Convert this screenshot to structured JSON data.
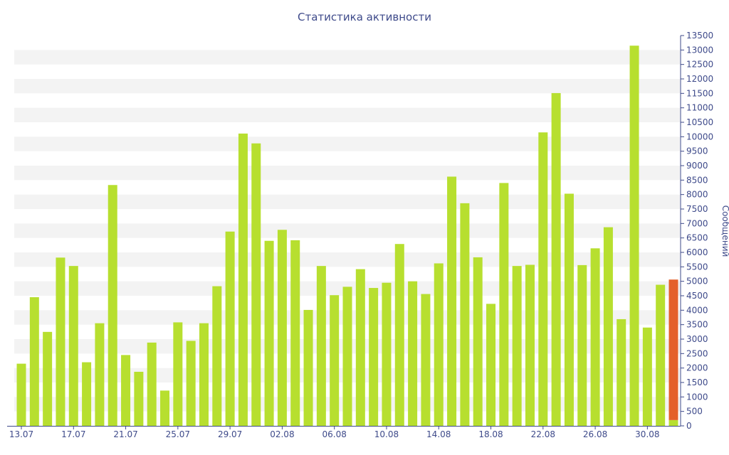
{
  "chart_data": {
    "type": "bar",
    "title": "Статистика активности",
    "ylabel": "Сообщений",
    "ylim": [
      0,
      13500
    ],
    "y_ticks": [
      0,
      500,
      1000,
      1500,
      2000,
      2500,
      3000,
      3500,
      4000,
      4500,
      5000,
      5500,
      6000,
      6500,
      7000,
      7500,
      8000,
      8500,
      9000,
      9500,
      10000,
      10500,
      11000,
      11500,
      12000,
      12500,
      13000,
      13500
    ],
    "x_tick_labels": [
      "13.07",
      "17.07",
      "21.07",
      "25.07",
      "29.07",
      "02.08",
      "06.08",
      "10.08",
      "14.08",
      "18.08",
      "22.08",
      "26.08",
      "30.08"
    ],
    "categories": [
      "13.07",
      "14.07",
      "15.07",
      "16.07",
      "17.07",
      "18.07",
      "19.07",
      "20.07",
      "21.07",
      "22.07",
      "23.07",
      "24.07",
      "25.07",
      "26.07",
      "27.07",
      "28.07",
      "29.07",
      "30.07",
      "31.07",
      "01.08",
      "02.08",
      "03.08",
      "04.08",
      "05.08",
      "06.08",
      "07.08",
      "08.08",
      "09.08",
      "10.08",
      "11.08",
      "12.08",
      "13.08",
      "14.08",
      "15.08",
      "16.08",
      "17.08",
      "18.08",
      "19.08",
      "20.08",
      "21.08",
      "22.08",
      "23.08",
      "24.08",
      "25.08",
      "26.08",
      "27.08",
      "28.08",
      "29.08",
      "30.08",
      "31.08",
      "01.09"
    ],
    "values": [
      2150,
      4450,
      3250,
      5820,
      5530,
      2200,
      3550,
      8330,
      2450,
      1870,
      2880,
      1220,
      3580,
      2940,
      3550,
      4830,
      6720,
      10110,
      9770,
      6400,
      6780,
      6420,
      4010,
      5530,
      4520,
      4810,
      5420,
      4770,
      4950,
      6290,
      5000,
      4560,
      5620,
      8620,
      7700,
      5830,
      4220,
      8400,
      5530,
      5570,
      10150,
      11510,
      8030,
      5560,
      6140,
      6870,
      3690,
      13150,
      3400,
      4880,
      5060
    ],
    "highlight_last": {
      "highlight_value": 4860,
      "base_value": 200
    },
    "colors": {
      "bar": "#b7df2f",
      "highlight": "#e4602a",
      "band": "#f3f3f3",
      "axis": "#3e4a8a"
    },
    "grid": "alternating horizontal bands",
    "legend": "none"
  }
}
